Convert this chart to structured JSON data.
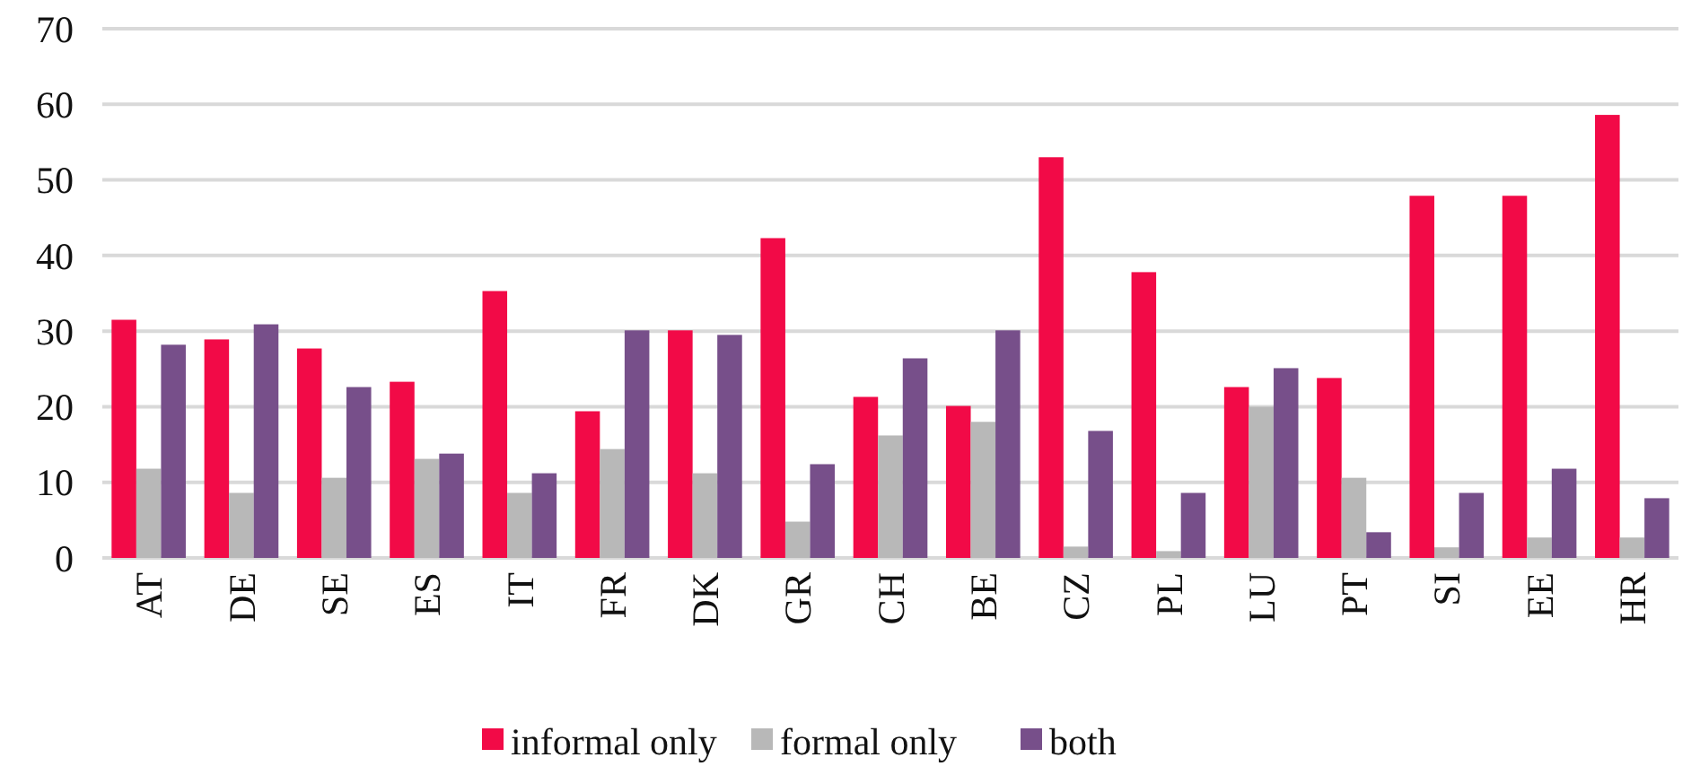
{
  "chart_data": {
    "type": "bar",
    "categories": [
      "AT",
      "DE",
      "SE",
      "ES",
      "IT",
      "FR",
      "DK",
      "GR",
      "CH",
      "BE",
      "CZ",
      "PL",
      "LU",
      "PT",
      "SI",
      "EE",
      "HR"
    ],
    "series": [
      {
        "name": "informal only",
        "color": "#f20a47",
        "values": [
          31.5,
          28.9,
          27.7,
          23.3,
          35.3,
          19.4,
          30.1,
          42.3,
          21.3,
          20.1,
          53.0,
          37.8,
          22.6,
          23.8,
          47.9,
          47.9,
          58.6
        ]
      },
      {
        "name": "formal only",
        "color": "#b8b8b8",
        "values": [
          11.8,
          8.6,
          10.6,
          13.1,
          8.6,
          14.4,
          11.2,
          4.8,
          16.2,
          18.0,
          1.5,
          0.9,
          20.0,
          10.6,
          1.4,
          2.7,
          2.7
        ]
      },
      {
        "name": "both",
        "color": "#774f8a",
        "values": [
          28.2,
          30.9,
          22.6,
          13.8,
          11.2,
          30.1,
          29.5,
          12.4,
          26.4,
          30.1,
          16.8,
          8.6,
          25.1,
          3.4,
          8.6,
          11.8,
          7.9
        ]
      }
    ],
    "ylim": [
      0,
      70
    ],
    "yticks": [
      0,
      10,
      20,
      30,
      40,
      50,
      60,
      70
    ],
    "grid": "y",
    "legend": "bottom"
  }
}
